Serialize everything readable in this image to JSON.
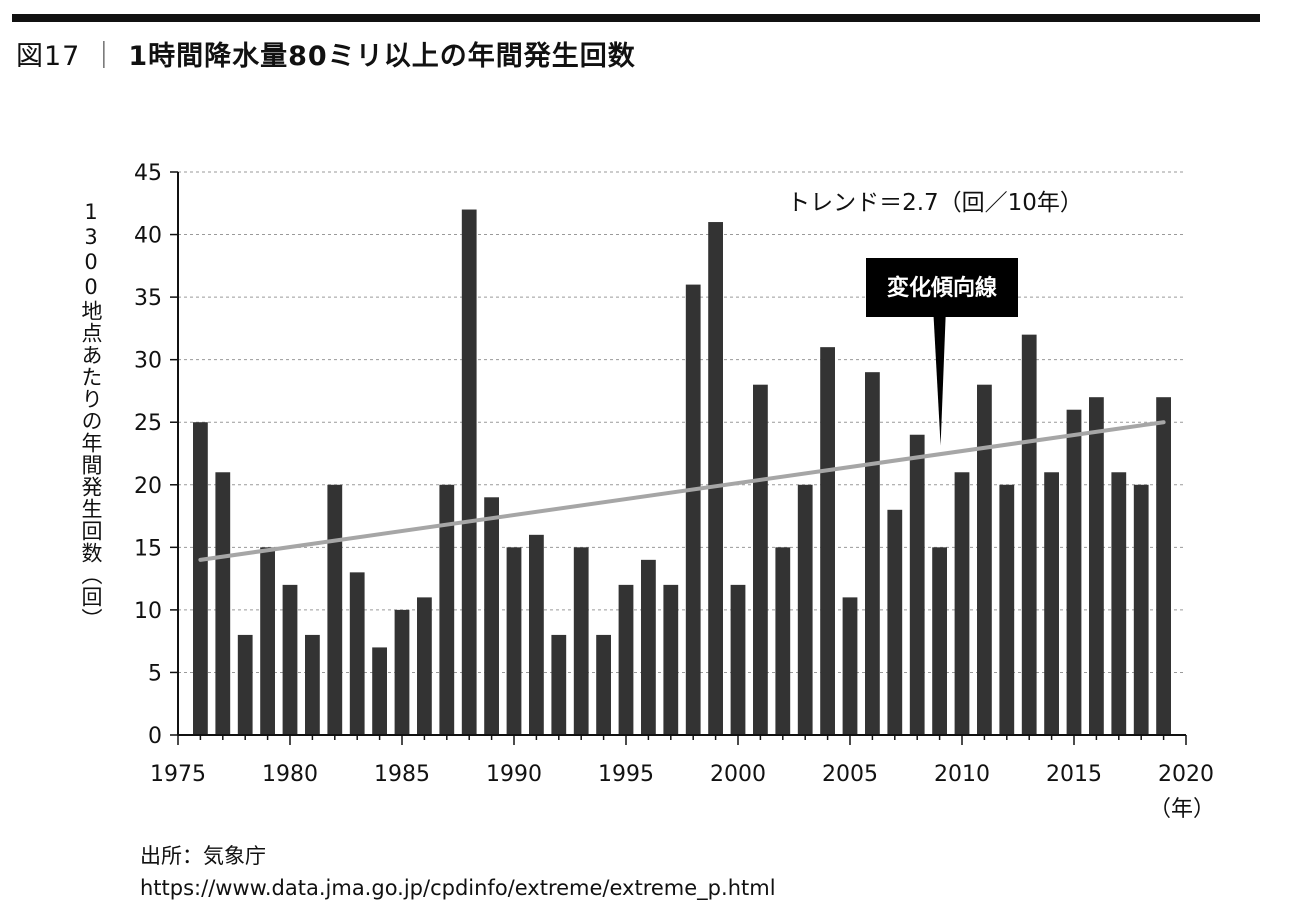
{
  "figure": {
    "number": "図17",
    "separator": "｜",
    "title": "1時間降水量80ミリ以上の年間発生回数"
  },
  "source": {
    "label": "出所：気象庁",
    "url": "https://www.data.jma.go.jp/cpdinfo/extreme/extreme_p.html"
  },
  "chart_data": {
    "type": "bar",
    "title": "1時間降水量80ミリ以上の年間発生回数",
    "ylabel": "1300地点あたりの年間発生回数（回）",
    "xlabel": "（年）",
    "xlim": [
      1975,
      2020
    ],
    "ylim": [
      0,
      45
    ],
    "x_ticks": [
      "1975",
      "1980",
      "1985",
      "1990",
      "1995",
      "2000",
      "2005",
      "2010",
      "2015",
      "2020"
    ],
    "y_ticks": [
      "0",
      "5",
      "10",
      "15",
      "20",
      "25",
      "30",
      "35",
      "40",
      "45"
    ],
    "grid": true,
    "years": [
      1976,
      1977,
      1978,
      1979,
      1980,
      1981,
      1982,
      1983,
      1984,
      1985,
      1986,
      1987,
      1988,
      1989,
      1990,
      1991,
      1992,
      1993,
      1994,
      1995,
      1996,
      1997,
      1998,
      1999,
      2000,
      2001,
      2002,
      2003,
      2004,
      2005,
      2006,
      2007,
      2008,
      2009,
      2010,
      2011,
      2012,
      2013,
      2014,
      2015,
      2016,
      2017,
      2018,
      2019
    ],
    "values": [
      25,
      21,
      8,
      15,
      12,
      8,
      20,
      13,
      7,
      10,
      11,
      20,
      42,
      19,
      15,
      16,
      8,
      15,
      8,
      12,
      14,
      12,
      36,
      41,
      12,
      28,
      15,
      20,
      31,
      11,
      29,
      18,
      24,
      15,
      21,
      28,
      20,
      32,
      21,
      26,
      27,
      21,
      20,
      27
    ],
    "trend": {
      "label": "トレンド＝2.7（回／10年）",
      "start": [
        1976,
        14
      ],
      "end": [
        2019,
        25
      ]
    },
    "annotation": "変化傾向線",
    "colors": {
      "bar": "#333333",
      "trend": "#a6a6a6",
      "grid": "#9a9a9a",
      "callout_bg": "#000000",
      "callout_text": "#ffffff"
    }
  }
}
